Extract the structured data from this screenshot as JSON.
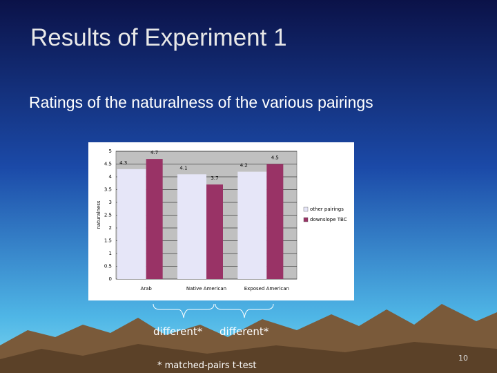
{
  "slide": {
    "title": "Results of Experiment 1",
    "subtitle": "Ratings of the naturalness of the various pairings",
    "annotations": [
      "different*",
      "different*"
    ],
    "footnote": "* matched-pairs t-test",
    "page_number": "10"
  },
  "chart_data": {
    "type": "bar",
    "y_label": "naturalness",
    "categories": [
      "Arab",
      "Native American",
      "Exposed American"
    ],
    "series": [
      {
        "name": "other pairings",
        "color": "#e6e6f8",
        "values": [
          4.3,
          4.1,
          4.2
        ]
      },
      {
        "name": "downslope TBC",
        "color": "#993366",
        "values": [
          4.7,
          3.7,
          4.5
        ]
      }
    ],
    "ylim": [
      0,
      5
    ],
    "yticks": [
      0,
      0.5,
      1,
      1.5,
      2,
      2.5,
      3,
      3.5,
      4,
      4.5,
      5
    ],
    "grid": true,
    "legend": "right"
  }
}
